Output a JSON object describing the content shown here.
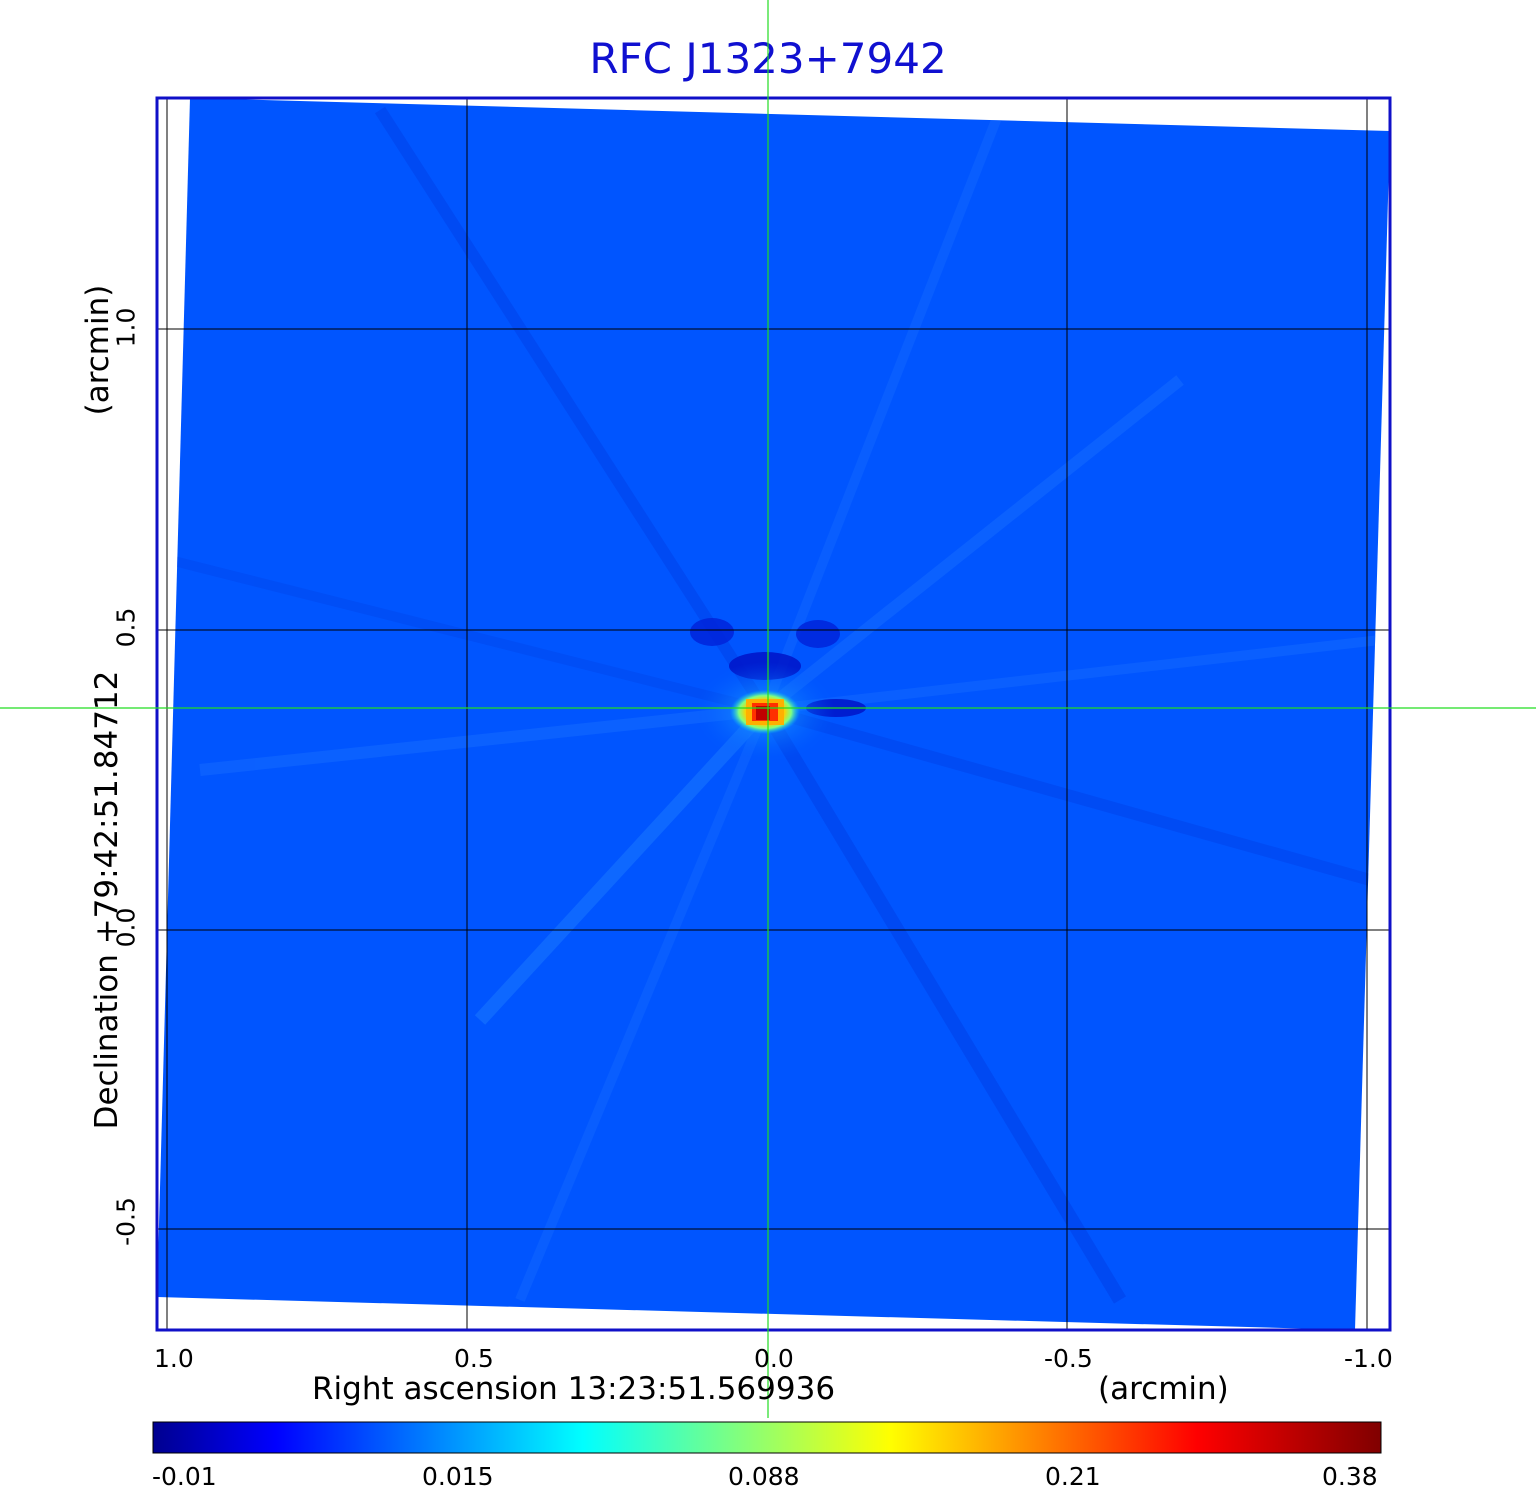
{
  "title": "RFC J1323+7942",
  "x_axis": {
    "label": "Right ascension  13:23:51.569936",
    "unit": "(arcmin)",
    "ticks": [
      "1.0",
      "0.5",
      "0.0",
      "-0.5",
      "-1.0"
    ]
  },
  "y_axis": {
    "label": "Declination  +79:42:51.84712",
    "unit": "(arcmin)",
    "ticks": [
      "1.0",
      "0.5",
      "0.0",
      "-0.5"
    ]
  },
  "colorbar": {
    "ticks": [
      "-0.01",
      "0.015",
      "0.088",
      "0.21",
      "0.38"
    ],
    "colormap": "jet"
  },
  "colors": {
    "frame": "#1010c8",
    "background_map": "#0055ff",
    "crosshair": "#22dd22",
    "title": "#1010d0"
  }
}
